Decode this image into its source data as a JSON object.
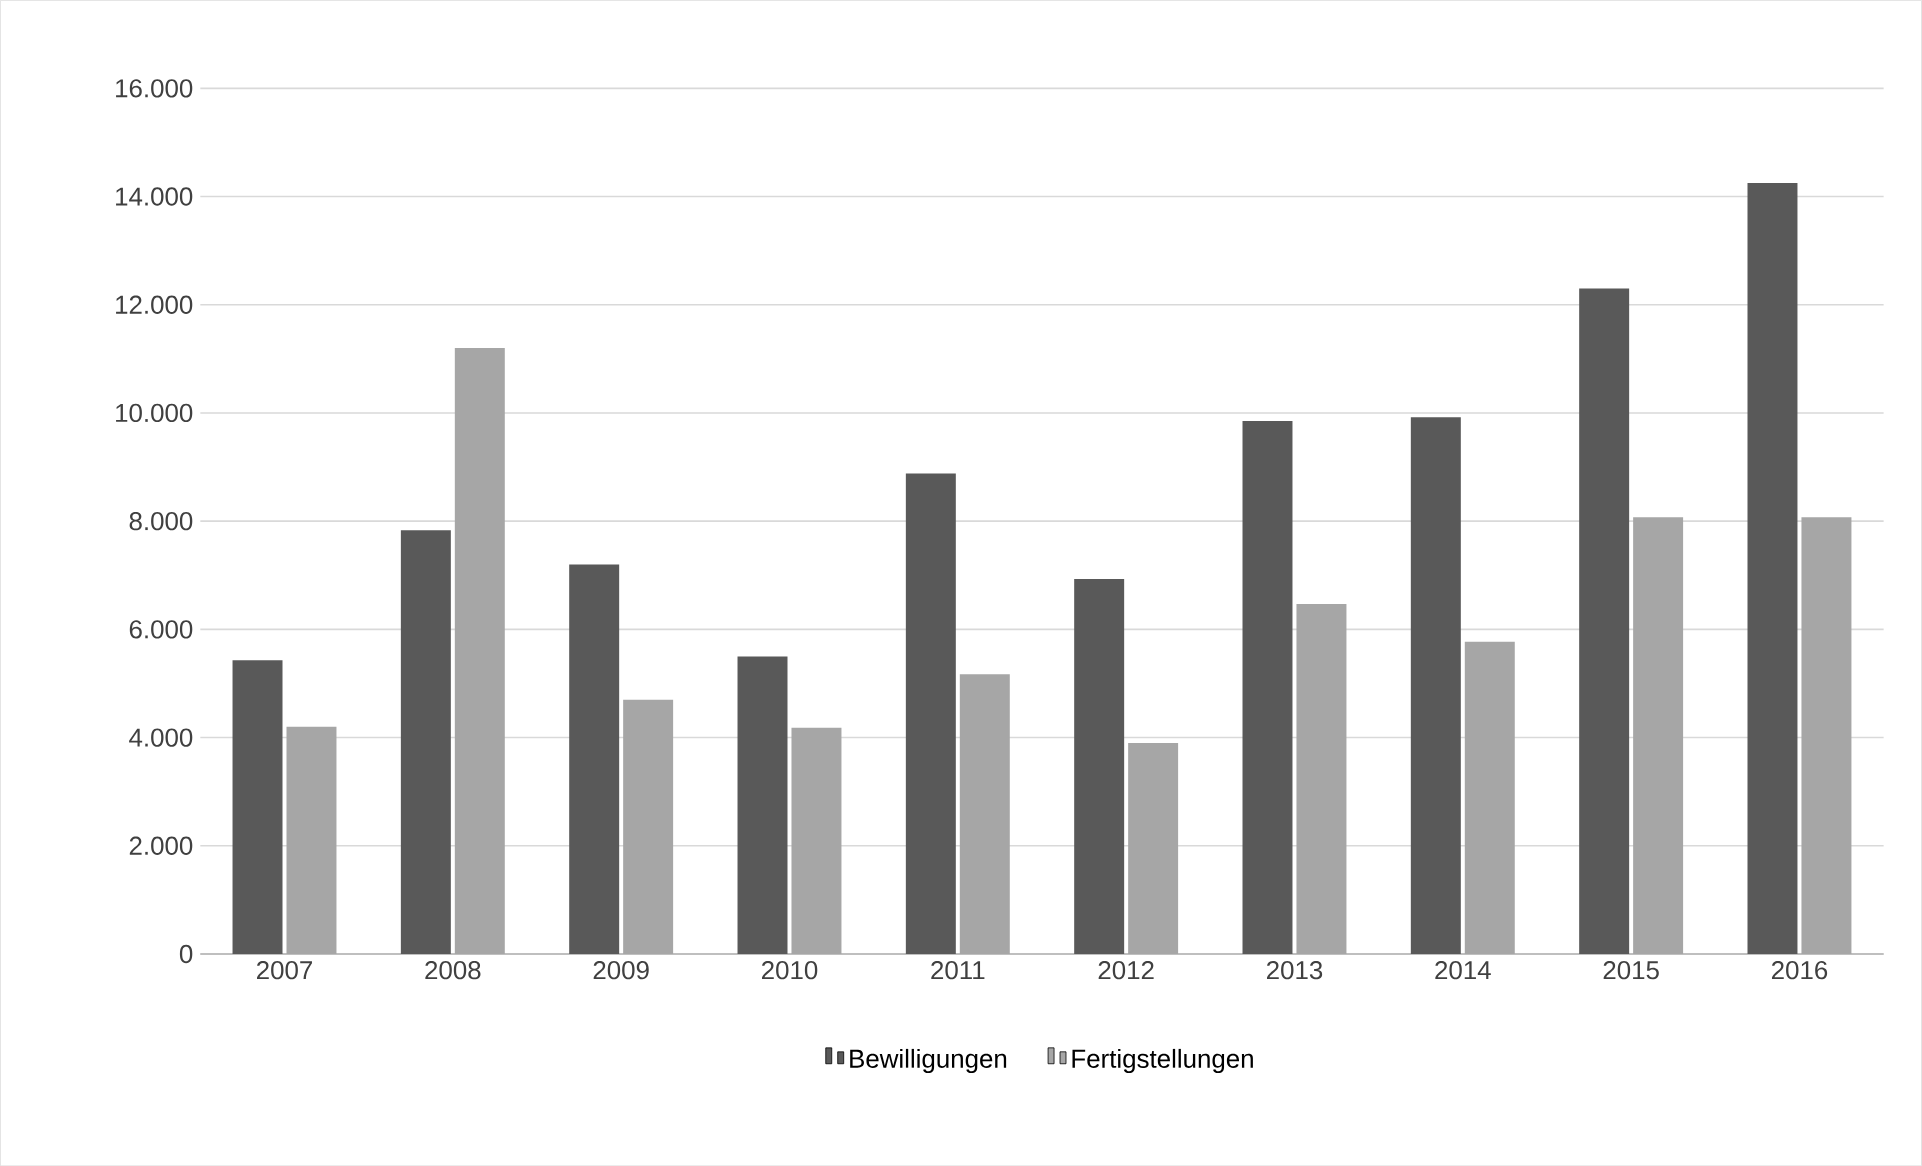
{
  "chart_data": {
    "type": "bar",
    "categories": [
      "2007",
      "2008",
      "2009",
      "2010",
      "2011",
      "2012",
      "2013",
      "2014",
      "2015",
      "2016"
    ],
    "series": [
      {
        "name": "Bewilligungen",
        "color": "#595959",
        "values": [
          5430,
          7830,
          7200,
          5500,
          8880,
          6930,
          9850,
          9920,
          12300,
          14250
        ]
      },
      {
        "name": "Fertigstellungen",
        "color": "#a6a6a6",
        "values": [
          4200,
          11200,
          4700,
          4180,
          5170,
          3900,
          6470,
          5770,
          8070,
          8070
        ]
      }
    ],
    "ylim": [
      0,
      16000
    ],
    "yticks": [
      0,
      {
        "value": 2000,
        "label": "2.000"
      },
      {
        "value": 4000,
        "label": "4.000"
      },
      {
        "value": 6000,
        "label": "6.000"
      },
      {
        "value": 8000,
        "label": "8.000"
      },
      {
        "value": 10000,
        "label": "10.000"
      },
      {
        "value": 12000,
        "label": "12.000"
      },
      {
        "value": 14000,
        "label": "14.000"
      },
      {
        "value": 16000,
        "label": "16.000"
      }
    ],
    "grid": "y",
    "legend": "bottom"
  }
}
